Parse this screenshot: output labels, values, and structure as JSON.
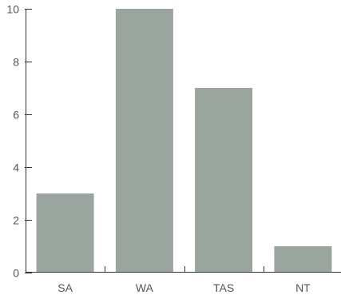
{
  "chart_data": {
    "type": "bar",
    "title": "",
    "xlabel": "",
    "ylabel": "",
    "categories": [
      "SA",
      "WA",
      "TAS",
      "NT"
    ],
    "values": [
      3,
      10,
      7,
      1
    ],
    "ylim": [
      0,
      10
    ],
    "yticks": [
      0,
      2,
      4,
      6,
      8,
      10
    ],
    "ytick_labels": [
      "0",
      "2",
      "4",
      "6",
      "8",
      "10"
    ],
    "grid": false,
    "legend": "none",
    "bar_color": "#9aa59f",
    "axis_color": "#333333",
    "label_color": "#555555"
  }
}
